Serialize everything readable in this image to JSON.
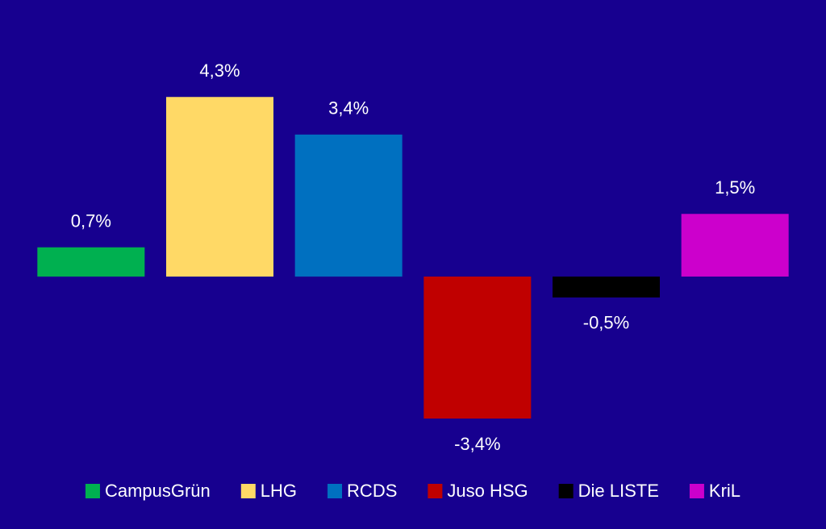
{
  "chart_data": {
    "type": "bar",
    "categories": [
      "CampusGrün",
      "LHG",
      "RCDS",
      "Juso HSG",
      "Die LISTE",
      "KriL"
    ],
    "values": [
      0.7,
      4.3,
      3.4,
      -3.4,
      -0.5,
      1.5
    ],
    "value_labels": [
      "0,7%",
      "4,3%",
      "3,4%",
      "-3,4%",
      "-0,5%",
      "1,5%"
    ],
    "colors": [
      "#00b050",
      "#ffd966",
      "#0070c0",
      "#c00000",
      "#000000",
      "#cc00cc"
    ],
    "ylim": [
      -4.5,
      5
    ],
    "legend": "bottom"
  }
}
